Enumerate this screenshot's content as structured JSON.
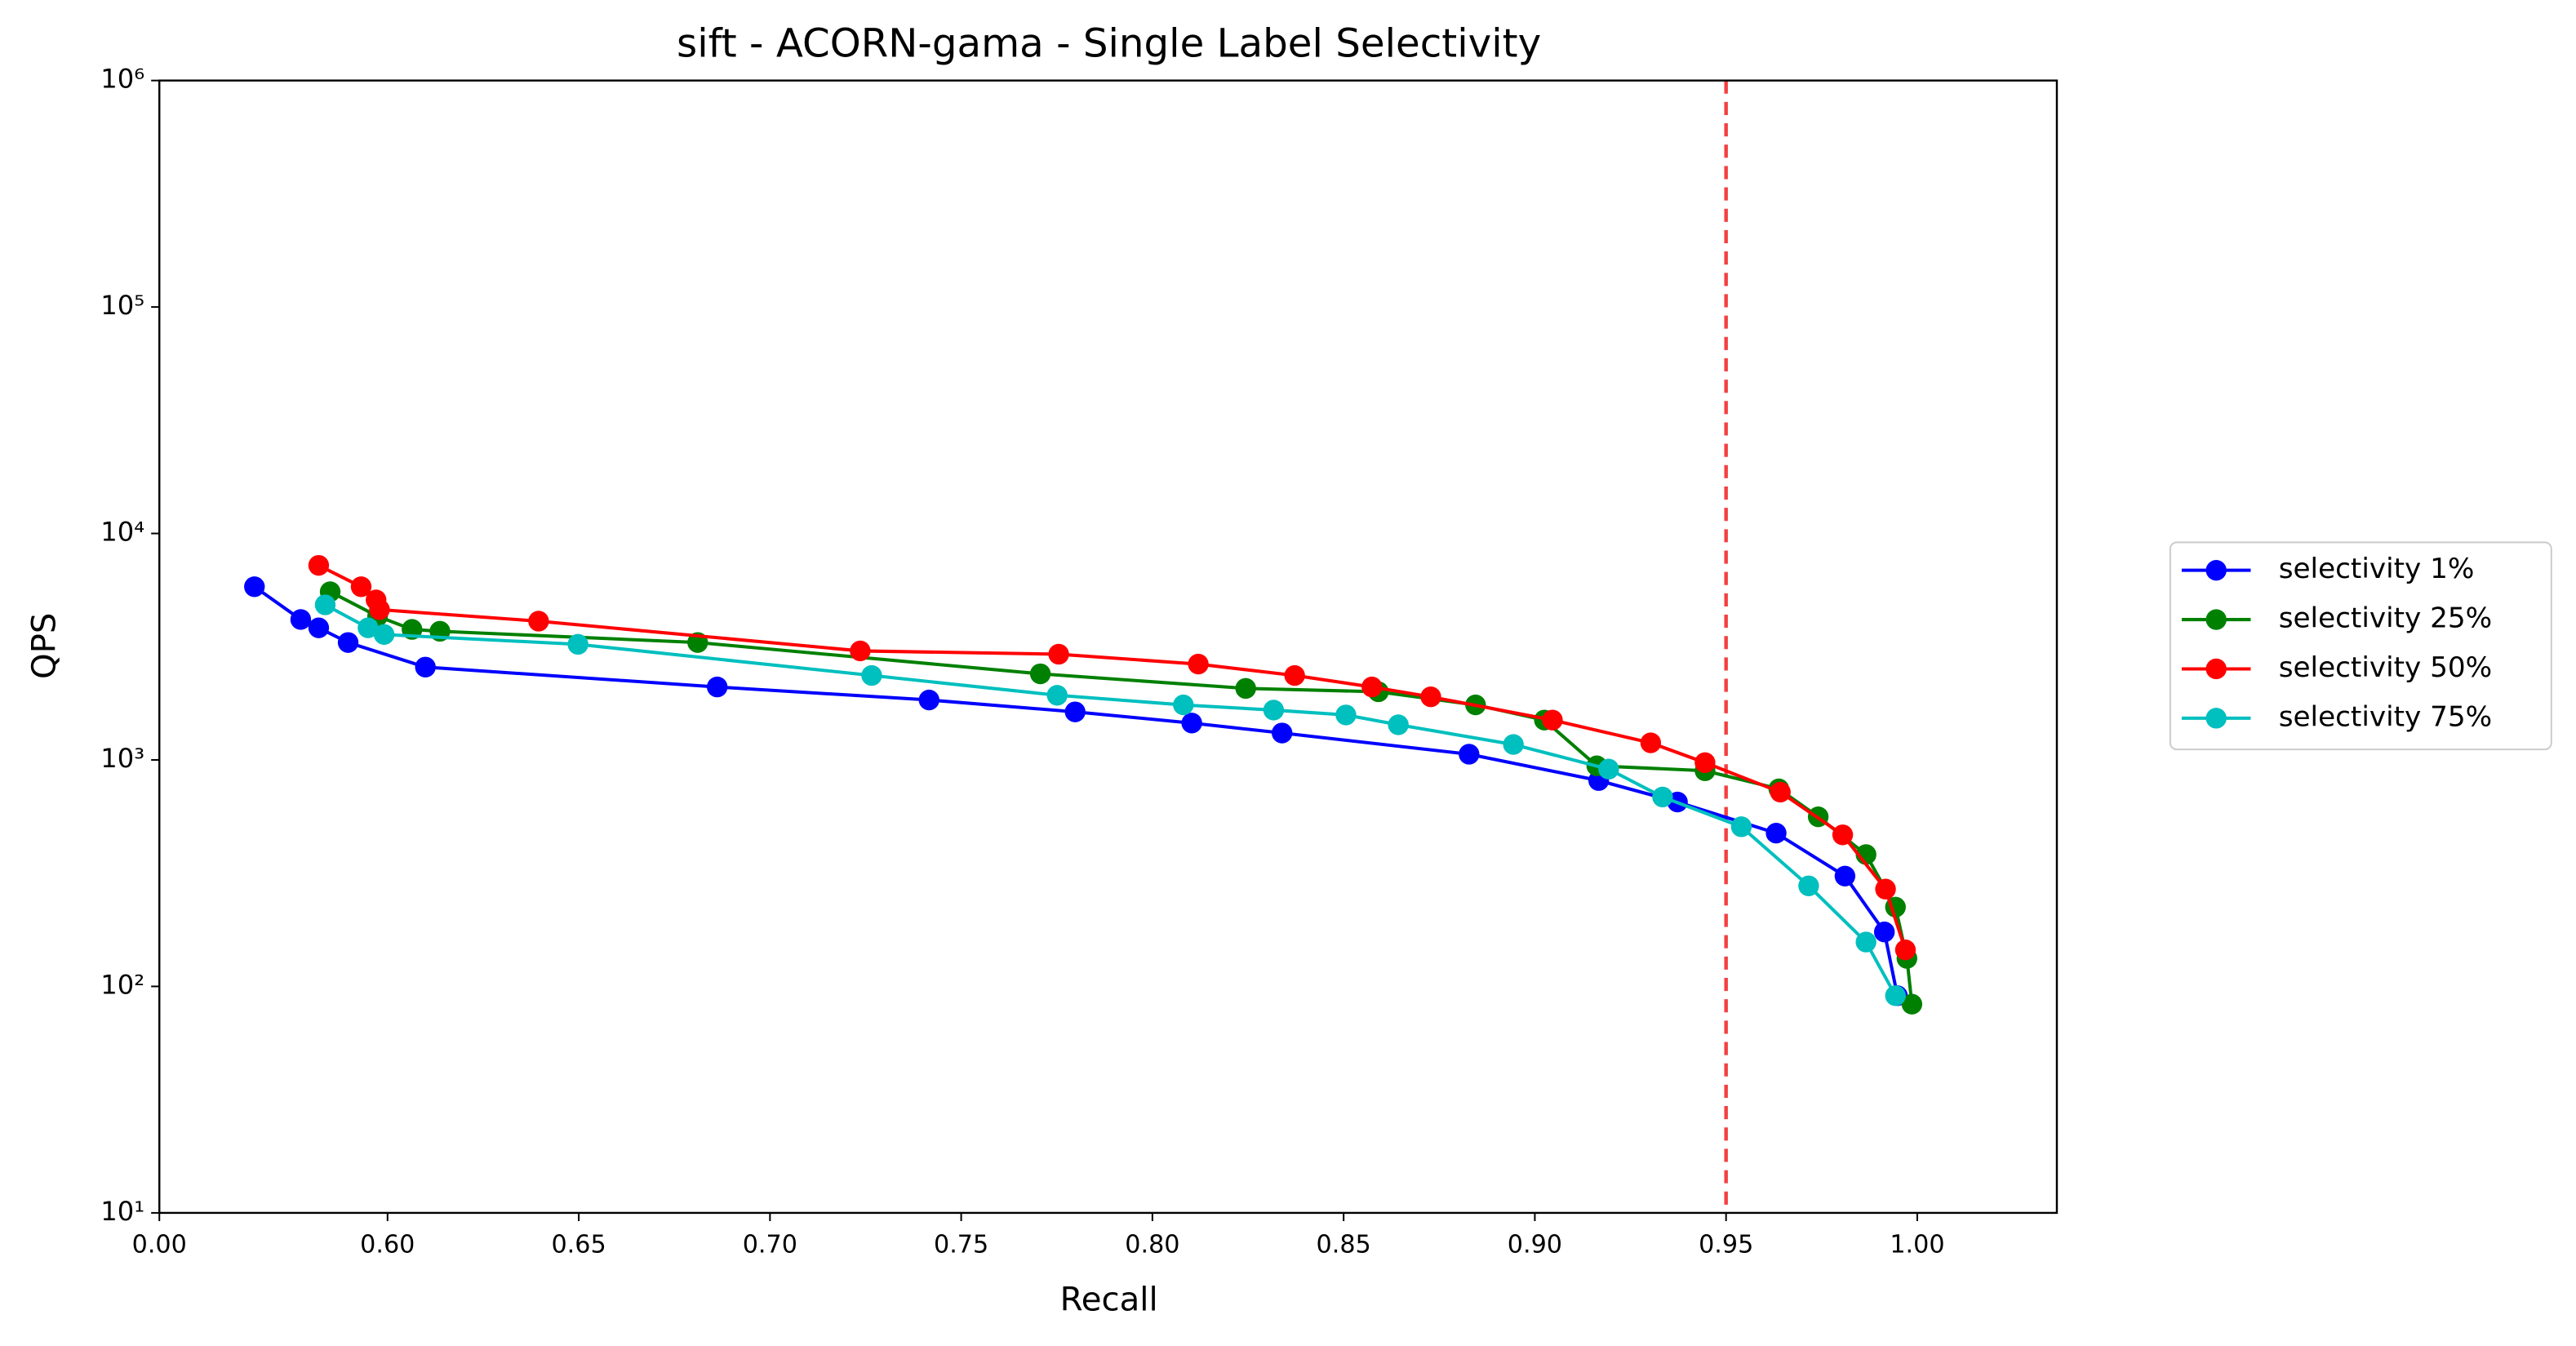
{
  "chart_data": {
    "type": "line",
    "title": "sift - ACORN-gama - Single Label Selectivity",
    "xlabel": "Recall",
    "ylabel": "QPS",
    "xscale": "broken",
    "xbreak": 0.55,
    "xlim": [
      0,
      1.0365
    ],
    "xticks": [
      {
        "value": 0,
        "label": "0.00"
      },
      {
        "value": 0.6,
        "label": "0.60"
      },
      0.65,
      {
        "value": 0.7,
        "label": "0.70"
      },
      0.75,
      {
        "value": 0.8,
        "label": "0.80"
      },
      0.85,
      {
        "value": 0.9,
        "label": "0.90"
      },
      0.95,
      {
        "value": 1.0,
        "label": "1.00"
      }
    ],
    "yscale": "log",
    "ylim": [
      10,
      1000000
    ],
    "yticks": [
      {
        "value": 10,
        "label": "10¹"
      },
      {
        "value": 100,
        "label": "10²"
      },
      {
        "value": 1000,
        "label": "10³"
      },
      {
        "value": 10000,
        "label": "10⁴"
      },
      {
        "value": 100000,
        "label": "10⁵"
      },
      {
        "value": 1000000,
        "label": "10⁶"
      }
    ],
    "vline": {
      "x": 0.95,
      "color": "#f44040",
      "style": "dashed"
    },
    "legend": "outside right",
    "series": [
      {
        "name": "selectivity 1%",
        "color": "#0000ff",
        "x": [
          0.5652,
          0.5773,
          0.582,
          0.5897,
          0.6099,
          0.6862,
          0.7416,
          0.7798,
          0.8103,
          0.8339,
          0.8828,
          0.9167,
          0.9373,
          0.9631,
          0.9811,
          0.9914,
          0.9948
        ],
        "values": [
          5820,
          4170,
          3830,
          3300,
          2570,
          2100,
          1840,
          1630,
          1455,
          1315,
          1060,
          811,
          652,
          475,
          307,
          174,
          91
        ]
      },
      {
        "name": "selectivity 25%",
        "color": "#008000",
        "x": [
          0.585,
          0.5974,
          0.6064,
          0.6137,
          0.6811,
          0.7707,
          0.8244,
          0.8591,
          0.8845,
          0.9025,
          0.9162,
          0.9445,
          0.9638,
          0.9741,
          0.9866,
          0.9943,
          0.9973,
          0.9986
        ],
        "values": [
          5530,
          4310,
          3770,
          3700,
          3300,
          2400,
          2070,
          2000,
          1750,
          1500,
          942,
          896,
          745,
          561,
          382,
          224,
          133,
          83.5
        ]
      },
      {
        "name": "selectivity 50%",
        "color": "#ff0000",
        "x": [
          0.582,
          0.5931,
          0.597,
          0.5979,
          0.6395,
          0.7236,
          0.7755,
          0.812,
          0.8372,
          0.8574,
          0.8728,
          0.9046,
          0.9303,
          0.9445,
          0.9642,
          0.9805,
          0.9917,
          0.9969
        ],
        "values": [
          7230,
          5820,
          5090,
          4610,
          4100,
          3030,
          2930,
          2650,
          2360,
          2100,
          1900,
          1500,
          1190,
          973,
          721,
          467,
          269,
          145
        ]
      },
      {
        "name": "selectivity 75%",
        "color": "#00bfbf",
        "x": [
          0.5837,
          0.5949,
          0.5991,
          0.6498,
          0.7266,
          0.7751,
          0.8081,
          0.8317,
          0.8506,
          0.8643,
          0.8944,
          0.9193,
          0.9334,
          0.954,
          0.9716,
          0.9866,
          0.9943
        ],
        "values": [
          4840,
          3830,
          3580,
          3240,
          2360,
          1930,
          1750,
          1660,
          1580,
          1430,
          1170,
          911,
          686,
          507,
          278,
          157,
          91
        ]
      }
    ]
  }
}
